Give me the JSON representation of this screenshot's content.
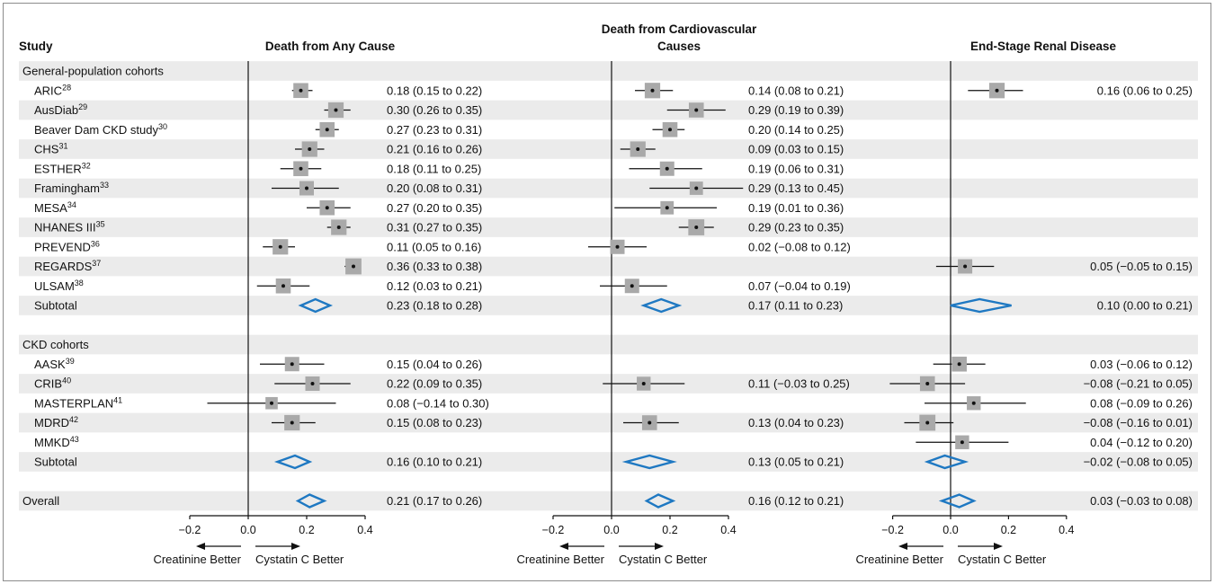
{
  "chart_data": {
    "type": "forest",
    "study_header": "Study",
    "panels": [
      {
        "title": "Death from Any Cause",
        "xlim": [
          -0.2,
          0.4
        ]
      },
      {
        "title_lines": [
          "Death from Cardiovascular",
          "Causes"
        ],
        "xlim": [
          -0.2,
          0.4
        ]
      },
      {
        "title": "End-Stage Renal Disease",
        "xlim": [
          -0.2,
          0.4
        ]
      }
    ],
    "ticks": [
      "−0.2",
      "0.0",
      "0.2",
      "0.4"
    ],
    "direction_labels": {
      "left": "Creatinine Better",
      "right": "Cystatin C Better"
    },
    "rows": [
      {
        "kind": "group",
        "label": "General-population cohorts"
      },
      {
        "kind": "study",
        "label": "ARIC",
        "ref": "28",
        "cells": [
          {
            "est": 0.18,
            "lo": 0.15,
            "hi": 0.22,
            "w": 0.55,
            "text": "0.18 (0.15 to 0.22)"
          },
          {
            "est": 0.14,
            "lo": 0.08,
            "hi": 0.21,
            "w": 0.6,
            "text": "0.14 (0.08 to 0.21)"
          },
          {
            "est": 0.16,
            "lo": 0.06,
            "hi": 0.25,
            "w": 0.6,
            "text": "0.16 (0.06 to 0.25)"
          }
        ]
      },
      {
        "kind": "study",
        "label": "AusDiab",
        "ref": "29",
        "cells": [
          {
            "est": 0.3,
            "lo": 0.26,
            "hi": 0.35,
            "w": 0.6,
            "text": "0.30 (0.26 to 0.35)"
          },
          {
            "est": 0.29,
            "lo": 0.19,
            "hi": 0.39,
            "w": 0.55,
            "text": "0.29 (0.19 to 0.39)"
          },
          null
        ]
      },
      {
        "kind": "study",
        "label": "Beaver Dam CKD study",
        "ref": "30",
        "cells": [
          {
            "est": 0.27,
            "lo": 0.23,
            "hi": 0.31,
            "w": 0.55,
            "text": "0.27 (0.23 to 0.31)"
          },
          {
            "est": 0.2,
            "lo": 0.14,
            "hi": 0.25,
            "w": 0.55,
            "text": "0.20 (0.14 to 0.25)"
          },
          null
        ]
      },
      {
        "kind": "study",
        "label": "CHS",
        "ref": "31",
        "cells": [
          {
            "est": 0.21,
            "lo": 0.16,
            "hi": 0.26,
            "w": 0.6,
            "text": "0.21 (0.16 to 0.26)"
          },
          {
            "est": 0.09,
            "lo": 0.03,
            "hi": 0.15,
            "w": 0.6,
            "text": "0.09 (0.03 to 0.15)"
          },
          null
        ]
      },
      {
        "kind": "study",
        "label": "ESTHER",
        "ref": "32",
        "cells": [
          {
            "est": 0.18,
            "lo": 0.11,
            "hi": 0.25,
            "w": 0.55,
            "text": "0.18 (0.11 to 0.25)"
          },
          {
            "est": 0.19,
            "lo": 0.06,
            "hi": 0.31,
            "w": 0.5,
            "text": "0.19 (0.06 to 0.31)"
          },
          null
        ]
      },
      {
        "kind": "study",
        "label": "Framingham",
        "ref": "33",
        "cells": [
          {
            "est": 0.2,
            "lo": 0.08,
            "hi": 0.31,
            "w": 0.5,
            "text": "0.20 (0.08 to 0.31)"
          },
          {
            "est": 0.29,
            "lo": 0.13,
            "hi": 0.45,
            "w": 0.4,
            "text": "0.29 (0.13 to 0.45)"
          },
          null
        ]
      },
      {
        "kind": "study",
        "label": "MESA",
        "ref": "34",
        "cells": [
          {
            "est": 0.27,
            "lo": 0.2,
            "hi": 0.35,
            "w": 0.55,
            "text": "0.27 (0.20 to 0.35)"
          },
          {
            "est": 0.19,
            "lo": 0.01,
            "hi": 0.36,
            "w": 0.4,
            "text": "0.19 (0.01 to 0.36)"
          },
          null
        ]
      },
      {
        "kind": "study",
        "label": "NHANES III",
        "ref": "35",
        "cells": [
          {
            "est": 0.31,
            "lo": 0.27,
            "hi": 0.35,
            "w": 0.6,
            "text": "0.31 (0.27 to 0.35)"
          },
          {
            "est": 0.29,
            "lo": 0.23,
            "hi": 0.35,
            "w": 0.65,
            "text": "0.29 (0.23 to 0.35)"
          },
          null
        ]
      },
      {
        "kind": "study",
        "label": "PREVEND",
        "ref": "36",
        "cells": [
          {
            "est": 0.11,
            "lo": 0.05,
            "hi": 0.16,
            "w": 0.6,
            "text": "0.11 (0.05 to 0.16)"
          },
          {
            "est": 0.02,
            "lo": -0.08,
            "hi": 0.12,
            "w": 0.5,
            "text": "0.02 (−0.08 to 0.12)"
          },
          null
        ]
      },
      {
        "kind": "study",
        "label": "REGARDS",
        "ref": "37",
        "cells": [
          {
            "est": 0.36,
            "lo": 0.33,
            "hi": 0.38,
            "w": 0.65,
            "text": "0.36 (0.33 to 0.38)"
          },
          null,
          {
            "est": 0.05,
            "lo": -0.05,
            "hi": 0.15,
            "w": 0.5,
            "text": "0.05 (−0.05 to 0.15)"
          }
        ]
      },
      {
        "kind": "study",
        "label": "ULSAM",
        "ref": "38",
        "cells": [
          {
            "est": 0.12,
            "lo": 0.03,
            "hi": 0.21,
            "w": 0.55,
            "text": "0.12 (0.03 to 0.21)"
          },
          {
            "est": 0.07,
            "lo": -0.04,
            "hi": 0.19,
            "w": 0.5,
            "text": "0.07 (−0.04 to 0.19)"
          },
          null
        ]
      },
      {
        "kind": "subtotal",
        "label": "Subtotal",
        "cells": [
          {
            "est": 0.23,
            "lo": 0.18,
            "hi": 0.28,
            "text": "0.23 (0.18 to 0.28)"
          },
          {
            "est": 0.17,
            "lo": 0.11,
            "hi": 0.23,
            "text": "0.17 (0.11 to 0.23)"
          },
          {
            "est": 0.1,
            "lo": 0.0,
            "hi": 0.21,
            "text": "0.10 (0.00 to 0.21)"
          }
        ]
      },
      {
        "kind": "blank"
      },
      {
        "kind": "group",
        "label": "CKD cohorts"
      },
      {
        "kind": "study",
        "label": "AASK",
        "ref": "39",
        "cells": [
          {
            "est": 0.15,
            "lo": 0.04,
            "hi": 0.26,
            "w": 0.5,
            "text": "0.15 (0.04 to 0.26)"
          },
          null,
          {
            "est": 0.03,
            "lo": -0.06,
            "hi": 0.12,
            "w": 0.55,
            "text": "0.03 (−0.06 to 0.12)"
          }
        ]
      },
      {
        "kind": "study",
        "label": "CRIB",
        "ref": "40",
        "cells": [
          {
            "est": 0.22,
            "lo": 0.09,
            "hi": 0.35,
            "w": 0.5,
            "text": "0.22 (0.09 to 0.35)"
          },
          {
            "est": 0.11,
            "lo": -0.03,
            "hi": 0.25,
            "w": 0.45,
            "text": "0.11 (−0.03 to 0.25)"
          },
          {
            "est": -0.08,
            "lo": -0.21,
            "hi": 0.05,
            "w": 0.55,
            "text": "−0.08 (−0.21 to 0.05)"
          }
        ]
      },
      {
        "kind": "study",
        "label": "MASTERPLAN",
        "ref": "41",
        "cells": [
          {
            "est": 0.08,
            "lo": -0.14,
            "hi": 0.3,
            "w": 0.3,
            "text": "0.08 (−0.14 to 0.30)"
          },
          null,
          {
            "est": 0.08,
            "lo": -0.09,
            "hi": 0.26,
            "w": 0.45,
            "text": "0.08 (−0.09 to 0.26)"
          }
        ]
      },
      {
        "kind": "study",
        "label": "MDRD",
        "ref": "42",
        "cells": [
          {
            "est": 0.15,
            "lo": 0.08,
            "hi": 0.23,
            "w": 0.6,
            "text": "0.15 (0.08 to 0.23)"
          },
          {
            "est": 0.13,
            "lo": 0.04,
            "hi": 0.23,
            "w": 0.55,
            "text": "0.13 (0.04 to 0.23)"
          },
          {
            "est": -0.08,
            "lo": -0.16,
            "hi": 0.01,
            "w": 0.65,
            "text": "−0.08 (−0.16 to 0.01)"
          }
        ]
      },
      {
        "kind": "study",
        "label": "MMKD",
        "ref": "43",
        "cells": [
          null,
          null,
          {
            "est": 0.04,
            "lo": -0.12,
            "hi": 0.2,
            "w": 0.45,
            "text": "0.04 (−0.12  to 0.20)"
          }
        ]
      },
      {
        "kind": "subtotal",
        "label": "Subtotal",
        "cells": [
          {
            "est": 0.16,
            "lo": 0.1,
            "hi": 0.21,
            "text": "0.16 (0.10 to 0.21)"
          },
          {
            "est": 0.13,
            "lo": 0.05,
            "hi": 0.21,
            "text": "0.13 (0.05 to 0.21)"
          },
          {
            "est": -0.02,
            "lo": -0.08,
            "hi": 0.05,
            "text": "−0.02 (−0.08 to 0.05)"
          }
        ]
      },
      {
        "kind": "blank"
      },
      {
        "kind": "overall",
        "label": "Overall",
        "cells": [
          {
            "est": 0.21,
            "lo": 0.17,
            "hi": 0.26,
            "text": "0.21 (0.17 to 0.26)"
          },
          {
            "est": 0.16,
            "lo": 0.12,
            "hi": 0.21,
            "text": "0.16 (0.12 to 0.21)"
          },
          {
            "est": 0.03,
            "lo": -0.03,
            "hi": 0.08,
            "text": "0.03 (−0.03 to 0.08)"
          }
        ]
      }
    ]
  },
  "colors": {
    "band": "#ebebeb",
    "box": "#a9a9a9",
    "diamond": "#1e78c2",
    "line": "#111111",
    "frame": "#8c8c8c"
  }
}
